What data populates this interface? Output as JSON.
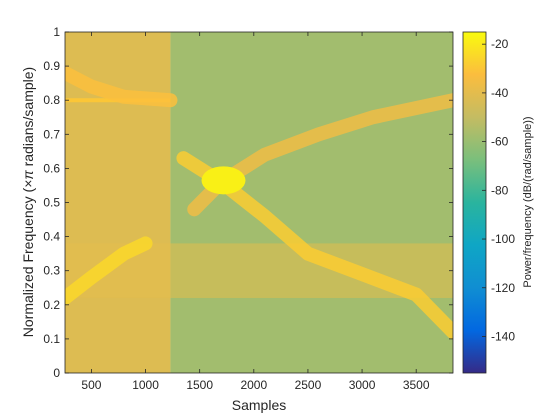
{
  "chart_data": {
    "type": "heatmap",
    "title": "",
    "xlabel": "Samples",
    "ylabel_prefix": "Normalized  Frequency  (",
    "ylabel_pi": "×π",
    "ylabel_suffix": " radians/sample)",
    "xlim": [
      256,
      3840
    ],
    "ylim": [
      0,
      1
    ],
    "x_ticks": [
      500,
      1000,
      1500,
      2000,
      2500,
      3000,
      3500
    ],
    "x_tick_labels": [
      "500",
      "1000",
      "1500",
      "2000",
      "2500",
      "3000",
      "3500"
    ],
    "y_ticks": [
      0,
      0.1,
      0.2,
      0.3,
      0.4,
      0.5,
      0.6,
      0.7,
      0.8,
      0.9,
      1
    ],
    "y_tick_labels": [
      "0",
      "0.1",
      "0.2",
      "0.3",
      "0.4",
      "0.5",
      "0.6",
      "0.7",
      "0.8",
      "0.9",
      "1"
    ],
    "colorbar": {
      "label": "Power/frequency (dB/(rad/sample))",
      "clim": [
        -155,
        -15
      ],
      "ticks": [
        -20,
        -40,
        -60,
        -80,
        -100,
        -120,
        -140
      ],
      "tick_labels": [
        "-20",
        "-40",
        "-60",
        "-80",
        "-100",
        "-120",
        "-140"
      ],
      "colormap": "parula"
    },
    "background_levels": [
      {
        "x_range": [
          256,
          1230
        ],
        "power_db": -42
      },
      {
        "x_range": [
          1230,
          3840
        ],
        "power_db": -58
      }
    ],
    "components": [
      {
        "kind": "tone",
        "x_range": [
          256,
          1230
        ],
        "freq": 0.8,
        "power_db": -30
      },
      {
        "kind": "band",
        "x_range": [
          256,
          3840
        ],
        "freq_range": [
          0.22,
          0.38
        ],
        "power_db": -40
      },
      {
        "kind": "chirp",
        "points": [
          [
            256,
            0.88
          ],
          [
            500,
            0.84
          ],
          [
            800,
            0.81
          ],
          [
            1230,
            0.8
          ]
        ],
        "power_db": -32
      },
      {
        "kind": "chirp",
        "points": [
          [
            256,
            0.22
          ],
          [
            500,
            0.28
          ],
          [
            800,
            0.35
          ],
          [
            1000,
            0.38
          ]
        ],
        "power_db": -25
      },
      {
        "kind": "chirp",
        "points": [
          [
            1350,
            0.63
          ],
          [
            1700,
            0.56
          ],
          [
            2100,
            0.46
          ],
          [
            2500,
            0.35
          ],
          [
            3000,
            0.29
          ],
          [
            3500,
            0.23
          ],
          [
            3840,
            0.12
          ]
        ],
        "power_db": -28
      },
      {
        "kind": "chirp",
        "points": [
          [
            1450,
            0.48
          ],
          [
            1700,
            0.56
          ],
          [
            2100,
            0.64
          ],
          [
            2600,
            0.7
          ],
          [
            3100,
            0.75
          ],
          [
            3840,
            0.8
          ]
        ],
        "power_db": -36
      },
      {
        "kind": "peak",
        "x": 1720,
        "freq": 0.565,
        "power_db": -18
      }
    ]
  }
}
